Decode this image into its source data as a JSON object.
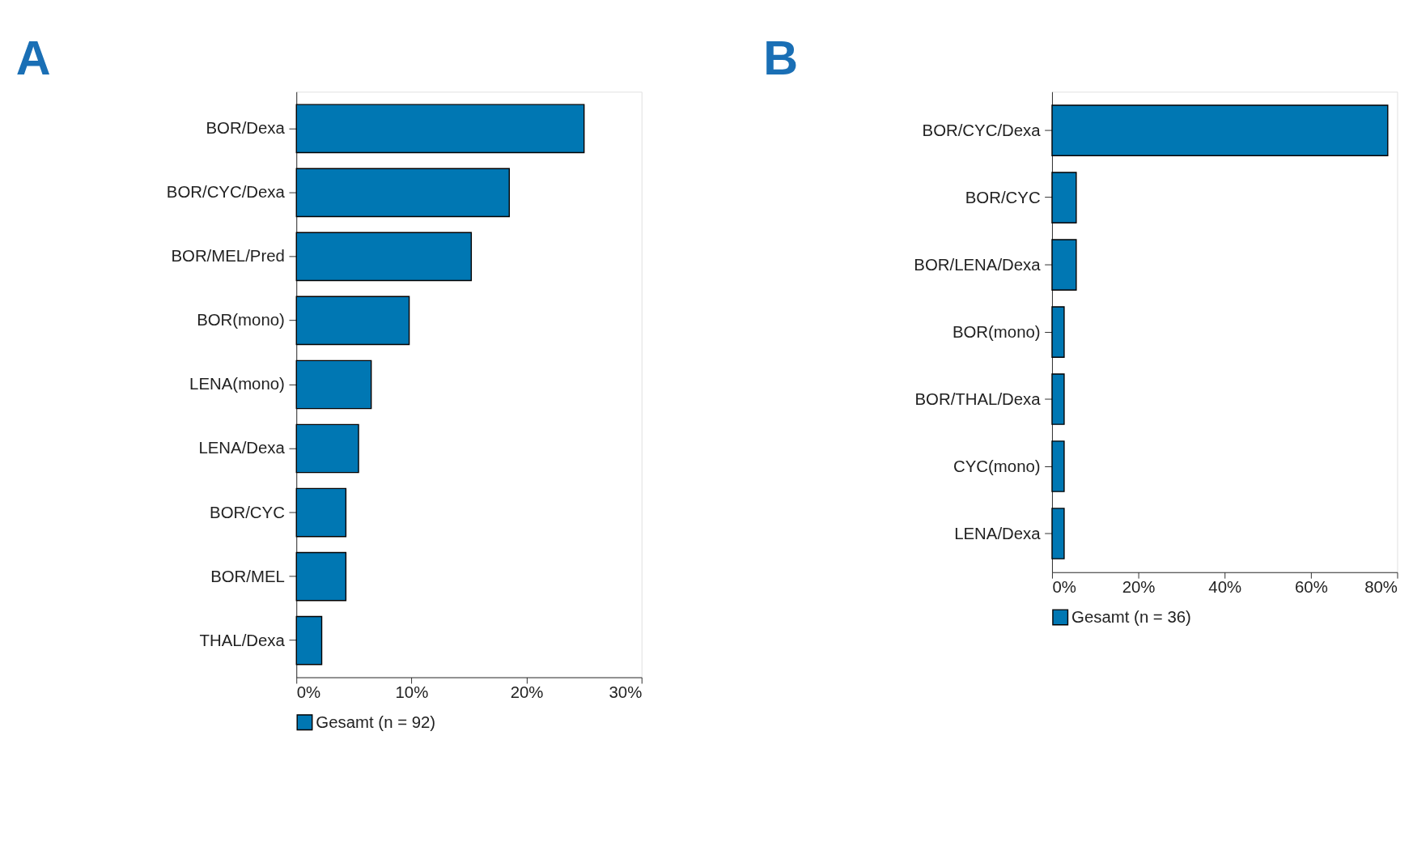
{
  "chart_data": [
    {
      "type": "bar",
      "orientation": "horizontal",
      "title": "A",
      "categories": [
        "BOR/Dexa",
        "BOR/CYC/Dexa",
        "BOR/MEL/Pred",
        "BOR(mono)",
        "LENA(mono)",
        "LENA/Dexa",
        "BOR/CYC",
        "BOR/MEL",
        "THAL/Dexa"
      ],
      "series": [
        {
          "name": "Gesamt (n = 92)",
          "color": "#0077b3",
          "values": [
            25.0,
            18.5,
            15.2,
            9.8,
            6.5,
            5.4,
            4.3,
            4.3,
            2.2
          ]
        }
      ],
      "xlim": [
        0,
        30
      ],
      "xticks": [
        {
          "value": 0,
          "label": "0%"
        },
        {
          "value": 10,
          "label": "10%"
        },
        {
          "value": 20,
          "label": "20%"
        },
        {
          "value": 30,
          "label": "30%"
        }
      ],
      "grid": false,
      "legend": "bottom"
    },
    {
      "type": "bar",
      "orientation": "horizontal",
      "title": "B",
      "categories": [
        "BOR/CYC/Dexa",
        "BOR/CYC",
        "BOR/LENA/Dexa",
        "BOR(mono)",
        "BOR/THAL/Dexa",
        "CYC(mono)",
        "LENA/Dexa"
      ],
      "series": [
        {
          "name": "Gesamt (n = 36)",
          "color": "#0077b3",
          "values": [
            77.8,
            5.6,
            5.6,
            2.8,
            2.8,
            2.8,
            2.8
          ]
        }
      ],
      "xlim": [
        0,
        80
      ],
      "xticks": [
        {
          "value": 0,
          "label": "0%"
        },
        {
          "value": 20,
          "label": "20%"
        },
        {
          "value": 40,
          "label": "40%"
        },
        {
          "value": 60,
          "label": "60%"
        },
        {
          "value": 80,
          "label": "80%"
        }
      ],
      "grid": false,
      "legend": "bottom"
    }
  ]
}
